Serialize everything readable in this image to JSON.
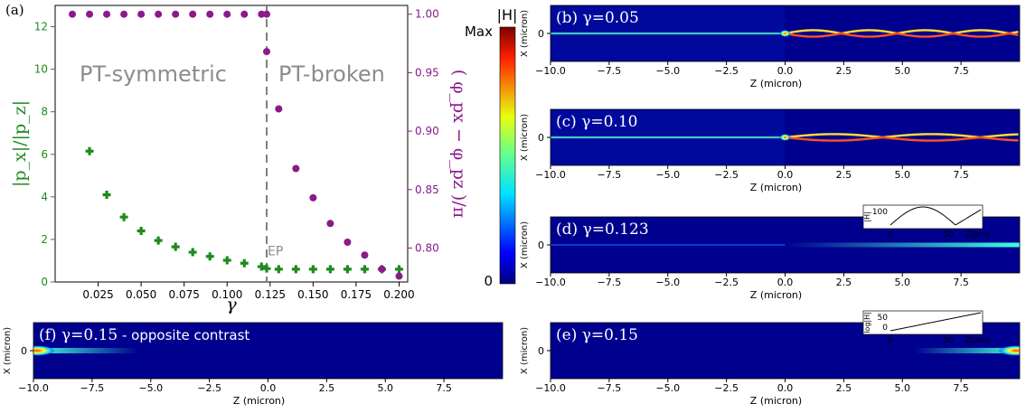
{
  "chart_data": [
    {
      "panel": "(a)",
      "type": "scatter",
      "x": [
        0.01,
        0.02,
        0.03,
        0.04,
        0.05,
        0.06,
        0.07,
        0.08,
        0.09,
        0.1,
        0.11,
        0.12,
        0.123,
        0.13,
        0.14,
        0.15,
        0.16,
        0.17,
        0.18,
        0.19,
        0.2
      ],
      "series": [
        {
          "name": "|p_x|/|p_z|",
          "axis": "left",
          "marker": "plus",
          "points": [
            [
              0.02,
              6.15
            ],
            [
              0.03,
              4.1
            ],
            [
              0.04,
              3.05
            ],
            [
              0.05,
              2.4
            ],
            [
              0.06,
              1.95
            ],
            [
              0.07,
              1.65
            ],
            [
              0.08,
              1.4
            ],
            [
              0.09,
              1.2
            ],
            [
              0.1,
              1.02
            ],
            [
              0.11,
              0.88
            ],
            [
              0.12,
              0.72
            ],
            [
              0.123,
              0.63
            ],
            [
              0.13,
              0.6
            ],
            [
              0.14,
              0.6
            ],
            [
              0.15,
              0.6
            ],
            [
              0.16,
              0.6
            ],
            [
              0.17,
              0.6
            ],
            [
              0.18,
              0.6
            ],
            [
              0.19,
              0.6
            ],
            [
              0.2,
              0.6
            ]
          ]
        },
        {
          "name": "(φ_px − φ_pz)/π",
          "axis": "right",
          "marker": "circle",
          "points": [
            [
              0.01,
              1.0
            ],
            [
              0.02,
              1.0
            ],
            [
              0.03,
              1.0
            ],
            [
              0.04,
              1.0
            ],
            [
              0.05,
              1.0
            ],
            [
              0.06,
              1.0
            ],
            [
              0.07,
              1.0
            ],
            [
              0.08,
              1.0
            ],
            [
              0.09,
              1.0
            ],
            [
              0.1,
              1.0
            ],
            [
              0.11,
              1.0
            ],
            [
              0.12,
              1.0
            ],
            [
              0.123,
              1.0
            ],
            [
              0.123,
              0.968
            ],
            [
              0.13,
              0.919
            ],
            [
              0.14,
              0.868
            ],
            [
              0.15,
              0.843
            ],
            [
              0.16,
              0.821
            ],
            [
              0.17,
              0.805
            ],
            [
              0.18,
              0.794
            ],
            [
              0.19,
              0.782
            ],
            [
              0.2,
              0.776
            ]
          ]
        }
      ],
      "xlim": [
        0.0,
        0.205
      ],
      "ylim_left": [
        0,
        13
      ],
      "ylim_right": [
        0.771,
        1.0075
      ],
      "x_ticks": [
        "0.025",
        "0.050",
        "0.075",
        "0.100",
        "0.125",
        "0.150",
        "0.175",
        "0.200"
      ],
      "y_left_ticks": [
        "0",
        "2",
        "4",
        "6",
        "8",
        "10",
        "12"
      ],
      "y_right_ticks": [
        "0.80",
        "0.85",
        "0.90",
        "0.95",
        "1.00"
      ],
      "xlabel": "γ",
      "ylabel_left": "|p_x|/|p_z|",
      "ylabel_right": "( φ_px − φ_pz )/π",
      "ep_gamma": 0.123,
      "annotations": [
        "PT-symmetric",
        "PT-broken",
        "EP"
      ],
      "colors": {
        "left": "#1f8a1f",
        "right": "#8b1a8b",
        "ep_line": "#808080",
        "text": "#8c8c8c"
      }
    },
    {
      "panel": "(b)",
      "type": "heatmap",
      "label_prefix": "(b)",
      "gamma_label": "γ=0.05",
      "xlabel": "Z (micron)",
      "ylabel": "X (micron)",
      "x_ticks": [
        "−10.0",
        "−7.5",
        "−5.0",
        "−2.5",
        "0.0",
        "2.5",
        "5.0",
        "7.5"
      ],
      "y_ticks": [
        "0"
      ]
    },
    {
      "panel": "(c)",
      "type": "heatmap",
      "label_prefix": "(c)",
      "gamma_label": "γ=0.10",
      "xlabel": "Z (micron)",
      "ylabel": "X (micron)",
      "x_ticks": [
        "−10.0",
        "−7.5",
        "−5.0",
        "−2.5",
        "0.0",
        "2.5",
        "5.0",
        "7.5"
      ],
      "y_ticks": [
        "0"
      ]
    },
    {
      "panel": "(d)",
      "type": "heatmap",
      "label_prefix": "(d)",
      "gamma_label": "γ=0.123",
      "xlabel": "Z (micron)",
      "ylabel": "X (micron)",
      "x_ticks": [
        "−10.0",
        "−7.5",
        "−5.0",
        "−2.5",
        "0.0",
        "2.5",
        "5.0",
        "7.5"
      ],
      "y_ticks": [
        "0"
      ],
      "inset": {
        "ylabel": "|H|",
        "y_tick": "100",
        "x_ticks": [
          "0",
          "50"
        ],
        "xlabel": "Z(μm)"
      }
    },
    {
      "panel": "(e)",
      "type": "heatmap",
      "label_prefix": "(e)",
      "gamma_label": "γ=0.15",
      "xlabel": "Z (micron)",
      "ylabel": "X (micron)",
      "x_ticks": [
        "−10.0",
        "−7.5",
        "−5.0",
        "−2.5",
        "0.0",
        "2.5",
        "5.0",
        "7.5"
      ],
      "y_ticks": [
        "0"
      ],
      "inset": {
        "ylabel": "log|H|",
        "y_ticks": [
          "50",
          "0"
        ],
        "x_ticks": [
          "0",
          "50"
        ],
        "xlabel": "Z(μm)"
      }
    },
    {
      "panel": "(f)",
      "type": "heatmap",
      "label_prefix": "(f)",
      "gamma_label": "γ=0.15",
      "note": " - opposite contrast",
      "xlabel": "Z (micron)",
      "ylabel": "X (micron)",
      "x_ticks": [
        "−10.0",
        "−7.5",
        "−5.0",
        "−2.5",
        "0.0",
        "2.5",
        "5.0",
        "7.5"
      ],
      "y_ticks": [
        "0"
      ]
    }
  ],
  "colorbar": {
    "title": "|H|",
    "max_label": "Max",
    "min_label": "0"
  }
}
